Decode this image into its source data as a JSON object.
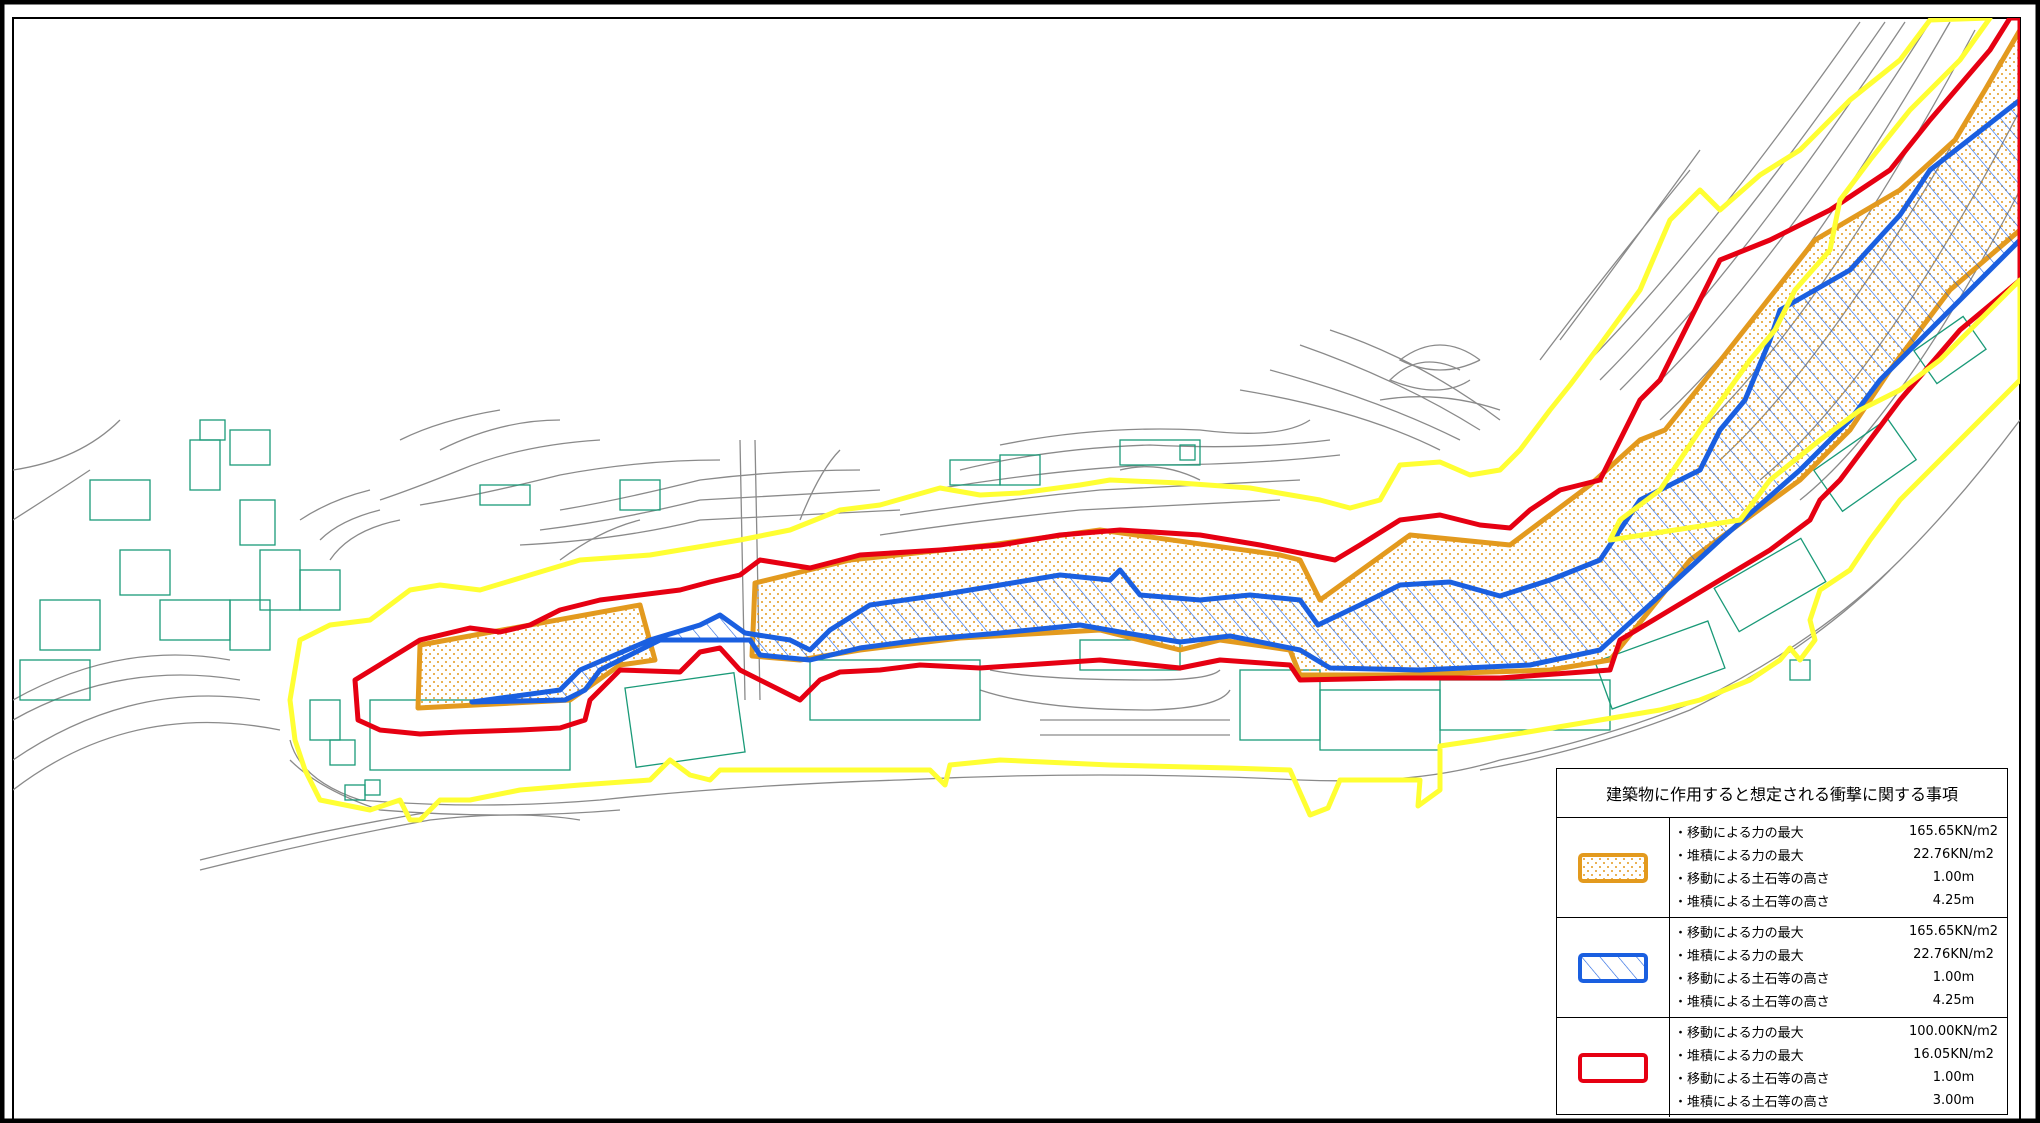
{
  "legend": {
    "title": "建築物に作用すると想定される衝撃に関する事項",
    "rows": [
      {
        "zone": "orange-dotted",
        "items": [
          {
            "label": "・移動による力の最大",
            "value": "165.65KN/m2"
          },
          {
            "label": "・堆積による力の最大",
            "value": "22.76KN/m2"
          },
          {
            "label": "・移動による土石等の高さ",
            "value": "1.00m"
          },
          {
            "label": "・堆積による土石等の高さ",
            "value": "4.25m"
          }
        ]
      },
      {
        "zone": "blue-hatched",
        "items": [
          {
            "label": "・移動による力の最大",
            "value": "165.65KN/m2"
          },
          {
            "label": "・堆積による力の最大",
            "value": "22.76KN/m2"
          },
          {
            "label": "・移動による土石等の高さ",
            "value": "1.00m"
          },
          {
            "label": "・堆積による土石等の高さ",
            "value": "4.25m"
          }
        ]
      },
      {
        "zone": "red-outline",
        "items": [
          {
            "label": "・移動による力の最大",
            "value": "100.00KN/m2"
          },
          {
            "label": "・堆積による力の最大",
            "value": "16.05KN/m2"
          },
          {
            "label": "・移動による土石等の高さ",
            "value": "1.00m"
          },
          {
            "label": "・堆積による土石等の高さ",
            "value": "3.00m"
          }
        ]
      }
    ]
  },
  "colors": {
    "yellow_boundary": "#ffff33",
    "red_zone": "#e60012",
    "orange_zone": "#e39a1e",
    "blue_zone": "#1a5fe0",
    "contours": "#8a8a8a",
    "buildings": "#1a9a78",
    "frame": "#000000"
  },
  "icons": [
    "orange-dotted-swatch-icon",
    "blue-hatched-swatch-icon",
    "red-outline-swatch-icon"
  ]
}
